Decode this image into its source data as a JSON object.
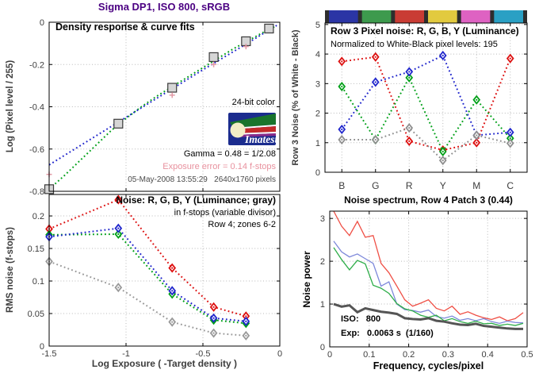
{
  "left_figure": {
    "title": "Sigma DP1, ISO 800, sRGB"
  },
  "colors": {
    "figure_title": "#4b0082",
    "axis_text": "#3d3d3d",
    "grid": "#b9b9b9",
    "series_red": "#dd1010",
    "series_green": "#00a018",
    "series_blue": "#2026cc",
    "series_gray": "#8f8f8f",
    "exposure_error_text": "#e8919e",
    "patch_square_fill": "#d6d6d6"
  },
  "chart_data": [
    {
      "id": "density",
      "type": "line",
      "title": "Density response & curve fits",
      "ylabel": "Log (Pixel level / 255)",
      "xlim": [
        -1.5,
        0
      ],
      "ylim": [
        -0.8,
        0
      ],
      "xticks": {
        "values": [
          -1.5,
          -1,
          -0.5,
          0
        ],
        "labels": [
          "",
          "",
          "",
          ""
        ]
      },
      "yticks": {
        "values": [
          0,
          -0.2,
          -0.4,
          -0.6,
          -0.8
        ],
        "labels": [
          "0",
          "-0.2",
          "-0.4",
          "-0.6",
          "-0.8"
        ]
      },
      "xgrid": [
        -1,
        -0.5
      ],
      "ygrid": [
        -0.2,
        -0.4,
        -0.6
      ],
      "grid_on": true,
      "annotations": {
        "bit_label": "24-bit color",
        "gamma": "Gamma = 0.48 = 1/2.08",
        "exposure_error": "Exposure error = 0.14 f-stops",
        "date_info": "05-May-2008 13:55:29   2640x1760 pixels",
        "logo_text": "Imatest"
      },
      "series": [
        {
          "name": "green-curve-fit",
          "color": "#00a018",
          "style": "dotted",
          "width": 2,
          "x": [
            -1.5,
            -1.4,
            -1.3,
            -1.2,
            -1.1,
            -1.0,
            -0.9,
            -0.8,
            -0.7,
            -0.6,
            -0.5,
            -0.4,
            -0.3,
            -0.2,
            -0.1,
            -0.03
          ],
          "y": [
            -0.79,
            -0.725,
            -0.655,
            -0.585,
            -0.515,
            -0.455,
            -0.4,
            -0.35,
            -0.305,
            -0.26,
            -0.215,
            -0.17,
            -0.125,
            -0.085,
            -0.045,
            -0.02
          ]
        },
        {
          "name": "blue-curve-fit",
          "color": "#2026cc",
          "style": "dotted",
          "width": 2,
          "x": [
            -1.5,
            -1.3,
            -1.1,
            -0.9,
            -0.7,
            -0.5,
            -0.35,
            -0.2,
            -0.1,
            -0.02
          ],
          "y": [
            -0.675,
            -0.585,
            -0.495,
            -0.405,
            -0.315,
            -0.225,
            -0.16,
            -0.095,
            -0.05,
            -0.015
          ]
        },
        {
          "name": "gray-patch-squares",
          "marker": "square",
          "color": "#3a3a3a",
          "fill": "#d6d6d6",
          "x": [
            -1.5,
            -1.05,
            -0.7,
            -0.43,
            -0.22,
            -0.07
          ],
          "y": [
            -0.79,
            -0.48,
            -0.31,
            -0.165,
            -0.09,
            -0.03
          ]
        },
        {
          "name": "exposure-plus-markers",
          "marker": "plus",
          "color": "#e39aa6",
          "x": [
            -1.5,
            -0.7,
            -0.43,
            -0.22
          ],
          "y": [
            -0.72,
            -0.345,
            -0.2,
            -0.115
          ]
        }
      ]
    },
    {
      "id": "rms_noise",
      "type": "line",
      "title_lines": [
        "Noise: R, G, B, Y (Luminance; gray)",
        "in f-stops (variable divisor)",
        "Row 4; zones 6-2"
      ],
      "xlabel": "Log Exposure ( -Target density )",
      "ylabel": "RMS noise (f-stops)",
      "xlim": [
        -1.5,
        0
      ],
      "ylim": [
        0,
        0.233
      ],
      "xticks": {
        "values": [
          -1.5,
          -1,
          -0.5,
          0
        ],
        "labels": [
          "-1.5",
          "-1",
          "-0.5",
          "0"
        ]
      },
      "yticks": {
        "values": [
          0,
          0.05,
          0.1,
          0.15,
          0.2
        ],
        "labels": [
          "0",
          "0.05",
          "0.1",
          "0.15",
          "0.2"
        ]
      },
      "xgrid": [
        -1,
        -0.5
      ],
      "ygrid": [
        0.05,
        0.1,
        0.15,
        0.2
      ],
      "grid_on": true,
      "x": [
        -1.5,
        -1.05,
        -0.7,
        -0.43,
        -0.22
      ],
      "series": [
        {
          "name": "red-noise",
          "color": "#dd1010",
          "style": "dotted",
          "width": 2,
          "marker": "diamond",
          "values": [
            0.18,
            0.225,
            0.12,
            0.06,
            0.046
          ]
        },
        {
          "name": "green-noise",
          "color": "#00a018",
          "style": "dotted",
          "width": 2,
          "marker": "diamond",
          "values": [
            0.171,
            0.172,
            0.08,
            0.04,
            0.035
          ]
        },
        {
          "name": "blue-noise",
          "color": "#2026cc",
          "style": "dotted",
          "width": 2,
          "marker": "diamond",
          "values": [
            0.168,
            0.181,
            0.085,
            0.043,
            0.038
          ]
        },
        {
          "name": "gray-luminance-noise",
          "color": "#999999",
          "style": "dotted",
          "width": 2,
          "marker": "diamond",
          "values": [
            0.13,
            0.09,
            0.037,
            0.02,
            0.016
          ]
        }
      ]
    },
    {
      "id": "pixel_noise",
      "type": "line",
      "title_lines": [
        "Row 3 Pixel noise: R, G, B, Y (Luminance)",
        "Normalized to White-Black pixel levels: 195"
      ],
      "ylabel": "Row 3 Noise (% of White - Black)",
      "categories": [
        "B",
        "G",
        "R",
        "Y",
        "M",
        "C"
      ],
      "ylim": [
        0,
        5.05
      ],
      "yticks": {
        "values": [
          0,
          1,
          2,
          3,
          4,
          5
        ],
        "labels": [
          "0",
          "1",
          "2",
          "3",
          "4",
          "5"
        ]
      },
      "ygrid": [
        1,
        2,
        3,
        4,
        5
      ],
      "grid_on": true,
      "colorbar": {
        "patch_colors": [
          "#2b35a5",
          "#3d9a4d",
          "#c93c34",
          "#e2ca3f",
          "#de62c2",
          "#2aa0c4"
        ],
        "separator_color": "#2e2e2e"
      },
      "series": [
        {
          "name": "red-pixel-noise",
          "color": "#dd1010",
          "style": "dotted",
          "width": 2,
          "marker": "diamond",
          "values": [
            3.75,
            3.9,
            1.05,
            0.75,
            1.0,
            3.85
          ]
        },
        {
          "name": "green-pixel-noise",
          "color": "#00a018",
          "style": "dotted",
          "width": 2,
          "marker": "diamond",
          "values": [
            2.9,
            1.1,
            3.2,
            0.7,
            2.45,
            1.15
          ]
        },
        {
          "name": "blue-pixel-noise",
          "color": "#2026cc",
          "style": "dotted",
          "width": 2,
          "marker": "diamond",
          "values": [
            1.45,
            3.05,
            3.4,
            3.95,
            1.25,
            1.35
          ]
        },
        {
          "name": "gray-pixel-noise",
          "color": "#8f8f8f",
          "style": "dotted",
          "width": 2,
          "marker": "diamond",
          "values": [
            1.1,
            1.1,
            1.5,
            0.4,
            1.25,
            0.98
          ]
        }
      ]
    },
    {
      "id": "spectrum",
      "type": "line",
      "title": "Noise spectrum, Row 4 Patch 3 (0.44)",
      "xlabel": "Frequency, cycles/pixel",
      "ylabel": "Noise power",
      "xlim": [
        0,
        0.5
      ],
      "ylim": [
        0,
        3.17
      ],
      "xticks": {
        "values": [
          0,
          0.1,
          0.2,
          0.3,
          0.4,
          0.5
        ],
        "labels": [
          "0",
          "0.1",
          "0.2",
          "0.3",
          "0.4",
          "0.5"
        ]
      },
      "yticks": {
        "values": [
          0,
          1,
          2,
          3
        ],
        "labels": [
          "0",
          "1",
          "2",
          "3"
        ]
      },
      "xgrid": [
        0.1,
        0.2,
        0.3,
        0.4
      ],
      "ygrid": [
        1,
        2,
        3
      ],
      "grid_on": true,
      "annotations": {
        "iso": "ISO:   800",
        "exp": "Exp:   0.0063 s  (1/160)"
      },
      "x": [
        0.01,
        0.03,
        0.05,
        0.07,
        0.09,
        0.11,
        0.13,
        0.15,
        0.17,
        0.19,
        0.21,
        0.23,
        0.25,
        0.27,
        0.29,
        0.31,
        0.33,
        0.35,
        0.37,
        0.39,
        0.41,
        0.43,
        0.45,
        0.47,
        0.49
      ],
      "series": [
        {
          "name": "red-spectrum",
          "color": "#ef4f45",
          "style": "solid",
          "width": 1.3,
          "values": [
            3.17,
            2.82,
            2.6,
            2.93,
            2.56,
            2.6,
            1.95,
            1.73,
            1.42,
            1.1,
            0.95,
            1.02,
            1.1,
            0.9,
            0.84,
            0.95,
            0.76,
            0.82,
            0.74,
            0.68,
            0.64,
            0.7,
            0.61,
            0.66,
            0.8
          ]
        },
        {
          "name": "blue-spectrum",
          "color": "#7d88da",
          "style": "solid",
          "width": 1.3,
          "values": [
            2.47,
            2.22,
            2.1,
            2.17,
            2.06,
            1.95,
            1.42,
            1.52,
            1.0,
            0.87,
            0.85,
            0.81,
            0.86,
            0.71,
            0.67,
            0.72,
            0.62,
            0.66,
            0.61,
            0.66,
            0.59,
            0.55,
            0.6,
            0.57,
            0.56
          ]
        },
        {
          "name": "green-spectrum",
          "color": "#2fae4a",
          "style": "solid",
          "width": 1.3,
          "values": [
            2.32,
            2.04,
            1.8,
            2.02,
            1.94,
            1.44,
            1.37,
            1.25,
            1.01,
            0.89,
            0.84,
            0.74,
            0.69,
            0.74,
            0.61,
            0.66,
            0.59,
            0.55,
            0.6,
            0.54,
            0.55,
            0.5,
            0.53,
            0.5,
            0.55
          ]
        },
        {
          "name": "gray-spectrum",
          "color": "#555555",
          "style": "solid",
          "width": 3,
          "values": [
            1.0,
            0.94,
            0.97,
            0.81,
            0.9,
            0.86,
            0.82,
            0.8,
            0.77,
            0.67,
            0.65,
            0.64,
            0.67,
            0.61,
            0.59,
            0.55,
            0.52,
            0.51,
            0.54,
            0.49,
            0.47,
            0.45,
            0.43,
            0.42,
            0.42
          ]
        }
      ]
    }
  ]
}
